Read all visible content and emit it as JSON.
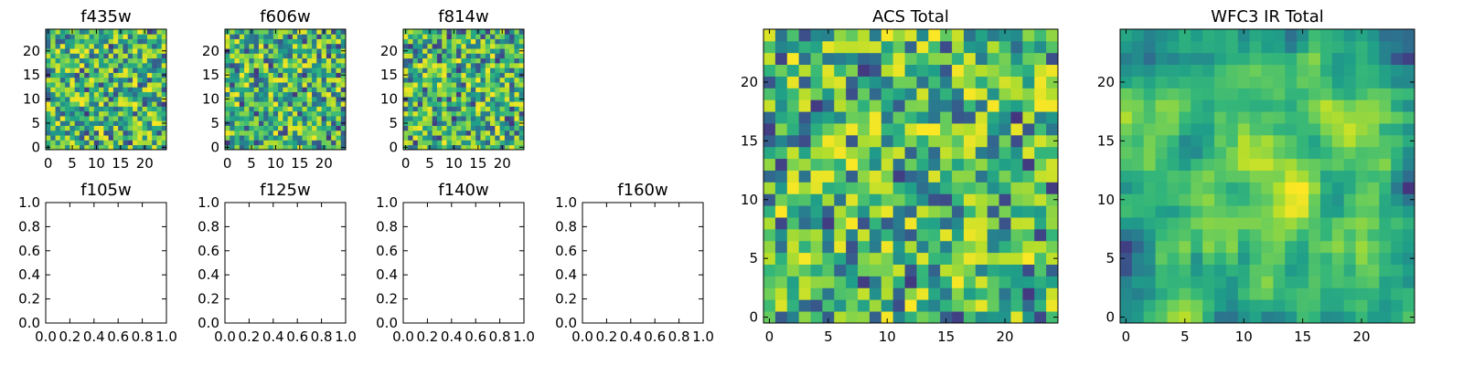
{
  "chart_data": [
    {
      "type": "heatmap",
      "title": "f435w",
      "colormap": "viridis",
      "grid_size": 25,
      "xlim": [
        -0.5,
        24.5
      ],
      "ylim": [
        -0.5,
        24.5
      ],
      "xticks": [
        "0",
        "5",
        "10",
        "15",
        "20"
      ],
      "yticks": [
        "0",
        "5",
        "10",
        "15",
        "20"
      ],
      "seed": 435
    },
    {
      "type": "heatmap",
      "title": "f606w",
      "colormap": "viridis",
      "grid_size": 25,
      "xlim": [
        -0.5,
        24.5
      ],
      "ylim": [
        -0.5,
        24.5
      ],
      "xticks": [
        "0",
        "5",
        "10",
        "15",
        "20"
      ],
      "yticks": [
        "0",
        "5",
        "10",
        "15",
        "20"
      ],
      "seed": 606
    },
    {
      "type": "heatmap",
      "title": "f814w",
      "colormap": "viridis",
      "grid_size": 25,
      "xlim": [
        -0.5,
        24.5
      ],
      "ylim": [
        -0.5,
        24.5
      ],
      "xticks": [
        "0",
        "5",
        "10",
        "15",
        "20"
      ],
      "yticks": [
        "0",
        "5",
        "10",
        "15",
        "20"
      ],
      "seed": 814
    },
    {
      "type": "empty",
      "title": "f105w",
      "xlim": [
        0,
        1
      ],
      "ylim": [
        0,
        1
      ],
      "xticks": [
        "0.0",
        "0.2",
        "0.4",
        "0.6",
        "0.8",
        "1.0"
      ],
      "yticks": [
        "0.0",
        "0.2",
        "0.4",
        "0.6",
        "0.8",
        "1.0"
      ]
    },
    {
      "type": "empty",
      "title": "f125w",
      "xlim": [
        0,
        1
      ],
      "ylim": [
        0,
        1
      ],
      "xticks": [
        "0.0",
        "0.2",
        "0.4",
        "0.6",
        "0.8",
        "1.0"
      ],
      "yticks": [
        "0.0",
        "0.2",
        "0.4",
        "0.6",
        "0.8",
        "1.0"
      ]
    },
    {
      "type": "empty",
      "title": "f140w",
      "xlim": [
        0,
        1
      ],
      "ylim": [
        0,
        1
      ],
      "xticks": [
        "0.0",
        "0.2",
        "0.4",
        "0.6",
        "0.8",
        "1.0"
      ],
      "yticks": [
        "0.0",
        "0.2",
        "0.4",
        "0.6",
        "0.8",
        "1.0"
      ]
    },
    {
      "type": "empty",
      "title": "f160w",
      "xlim": [
        0,
        1
      ],
      "ylim": [
        0,
        1
      ],
      "xticks": [
        "0.0",
        "0.2",
        "0.4",
        "0.6",
        "0.8",
        "1.0"
      ],
      "yticks": [
        "0.0",
        "0.2",
        "0.4",
        "0.6",
        "0.8",
        "1.0"
      ]
    },
    {
      "type": "heatmap",
      "title": "ACS Total",
      "colormap": "viridis",
      "grid_size": 25,
      "xlim": [
        -0.5,
        24.5
      ],
      "ylim": [
        -0.5,
        24.5
      ],
      "xticks": [
        "0",
        "5",
        "10",
        "15",
        "20"
      ],
      "yticks": [
        "0",
        "5",
        "10",
        "15",
        "20"
      ],
      "seed": 1001
    },
    {
      "type": "heatmap",
      "title": "WFC3 IR Total",
      "colormap": "viridis",
      "grid_size": 25,
      "xlim": [
        -0.5,
        24.5
      ],
      "ylim": [
        -0.5,
        24.5
      ],
      "xticks": [
        "0",
        "5",
        "10",
        "15",
        "20"
      ],
      "yticks": [
        "0",
        "5",
        "10",
        "15",
        "20"
      ],
      "seed": 3003,
      "smooth": true
    }
  ]
}
